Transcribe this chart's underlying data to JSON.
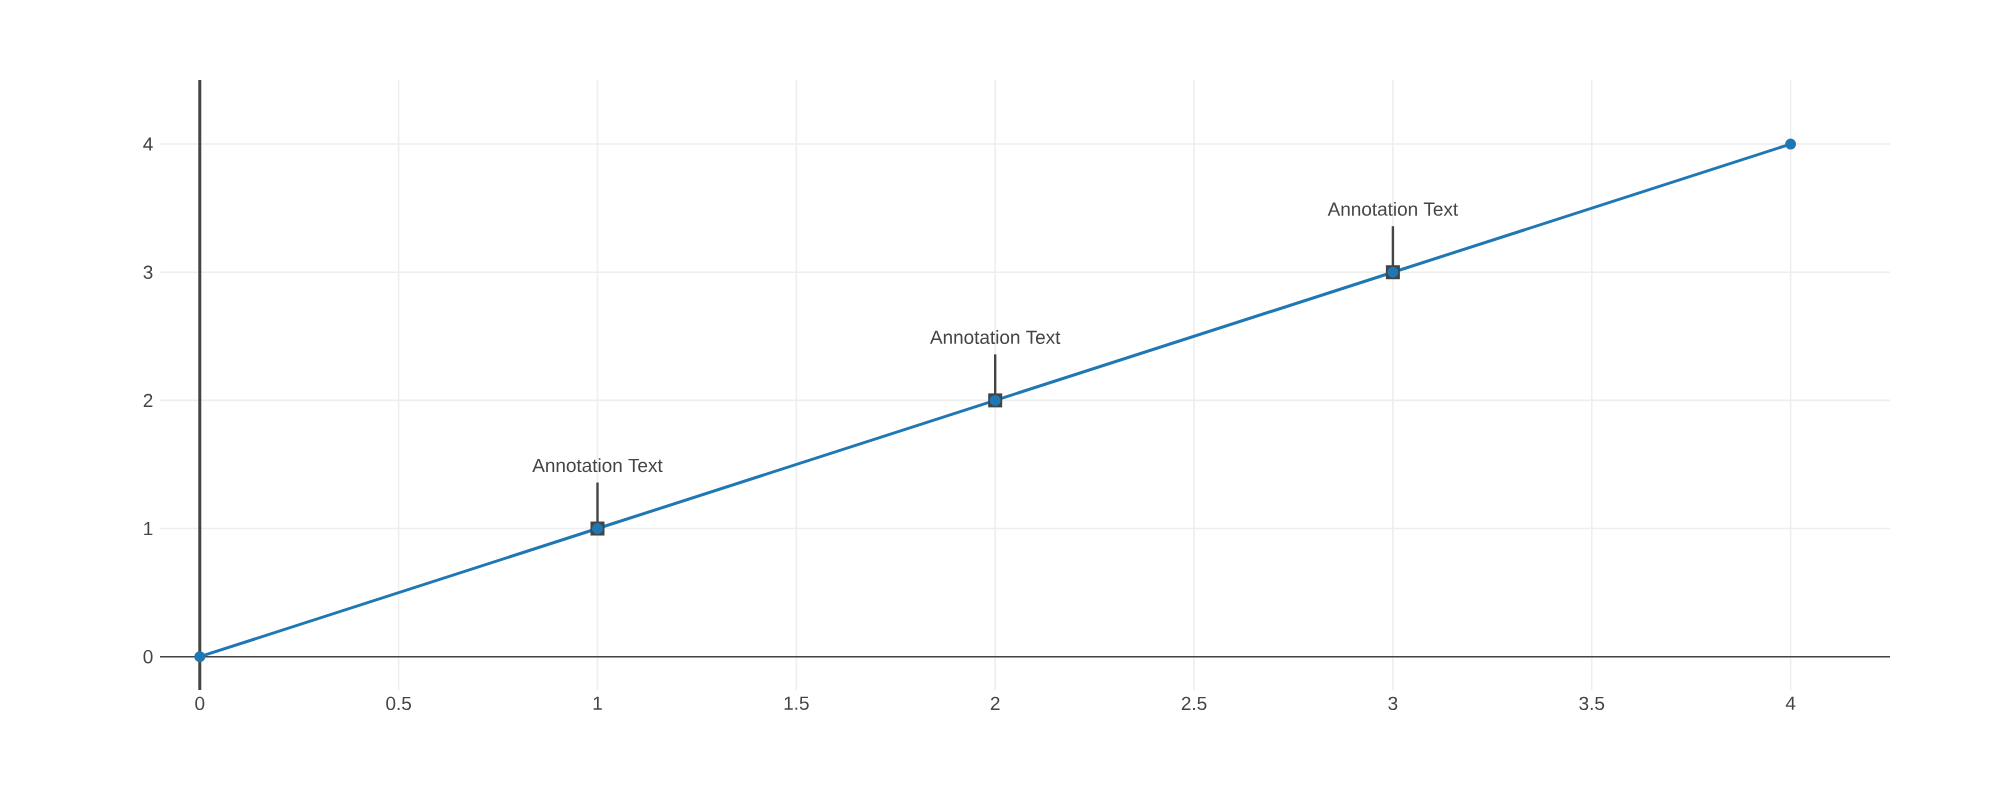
{
  "chart_data": {
    "type": "line",
    "x": [
      0,
      1,
      2,
      3,
      4
    ],
    "series": [
      {
        "color": "#1f77b4",
        "values": [
          0,
          1,
          2,
          3,
          4
        ]
      }
    ],
    "xlim": [
      -0.1,
      4.25
    ],
    "ylim": [
      -0.26,
      4.5
    ],
    "xticks": [
      0,
      0.5,
      1,
      1.5,
      2,
      2.5,
      3,
      3.5,
      4
    ],
    "yticks": [
      0,
      1,
      2,
      3,
      4
    ],
    "grid": true,
    "marker": "circle",
    "line_style": "solid",
    "annotations": [
      {
        "text": "Annotation Text",
        "x": 1,
        "y": 1
      },
      {
        "text": "Annotation Text",
        "x": 2,
        "y": 2
      },
      {
        "text": "Annotation Text",
        "x": 3,
        "y": 3
      }
    ]
  }
}
